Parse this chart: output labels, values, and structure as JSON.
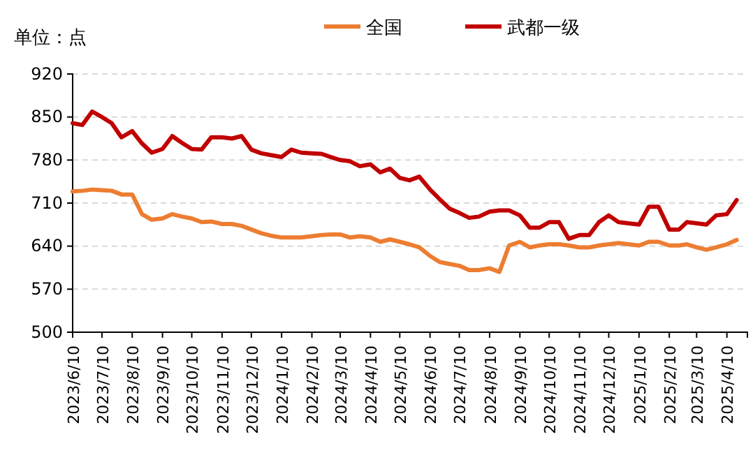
{
  "chart_data": {
    "type": "line",
    "ylabel": "单位：点",
    "legend": "top",
    "grid": "y",
    "marker": "none",
    "line_style": "solid",
    "x": [
      "2023-06-10",
      "2023-06-20",
      "2023-06-30",
      "2023-07-10",
      "2023-07-20",
      "2023-07-30",
      "2023-08-10",
      "2023-08-20",
      "2023-08-30",
      "2023-09-10",
      "2023-09-20",
      "2023-09-30",
      "2023-10-10",
      "2023-10-20",
      "2023-10-30",
      "2023-11-10",
      "2023-11-20",
      "2023-11-30",
      "2023-12-10",
      "2023-12-20",
      "2023-12-30",
      "2024-01-10",
      "2024-01-20",
      "2024-01-30",
      "2024-02-10",
      "2024-02-20",
      "2024-02-29",
      "2024-03-10",
      "2024-03-20",
      "2024-03-30",
      "2024-04-10",
      "2024-04-20",
      "2024-04-30",
      "2024-05-10",
      "2024-05-20",
      "2024-05-30",
      "2024-06-10",
      "2024-06-20",
      "2024-06-30",
      "2024-07-10",
      "2024-07-20",
      "2024-07-30",
      "2024-08-10",
      "2024-08-20",
      "2024-08-30",
      "2024-09-10",
      "2024-09-20",
      "2024-09-30",
      "2024-10-10",
      "2024-10-20",
      "2024-10-30",
      "2024-11-10",
      "2024-11-20",
      "2024-11-30",
      "2024-12-10",
      "2024-12-20",
      "2024-12-30",
      "2025-01-10",
      "2025-01-20",
      "2025-01-30",
      "2025-02-10",
      "2025-02-20",
      "2025-02-28",
      "2025-03-10",
      "2025-03-20",
      "2025-03-30",
      "2025-04-10",
      "2025-04-20"
    ],
    "series": [
      {
        "name": "全国",
        "color": "#ed7d31",
        "values": [
          729,
          730,
          732,
          731,
          730,
          724,
          724,
          692,
          683,
          685,
          692,
          688,
          685,
          679,
          680,
          676,
          676,
          673,
          667,
          661,
          657,
          654,
          654,
          654,
          656,
          658,
          659,
          659,
          654,
          656,
          654,
          647,
          651,
          647,
          643,
          638,
          624,
          614,
          611,
          608,
          601,
          601,
          604,
          598,
          641,
          647,
          638,
          641,
          643,
          643,
          641,
          638,
          638,
          641,
          643,
          645,
          643,
          641,
          647,
          647,
          641,
          641,
          643,
          638,
          634,
          638,
          643,
          650
        ]
      },
      {
        "name": "武都一级",
        "color": "#c00000",
        "values": [
          840,
          837,
          859,
          850,
          840,
          817,
          827,
          807,
          792,
          798,
          819,
          808,
          798,
          797,
          817,
          817,
          815,
          819,
          797,
          791,
          788,
          785,
          797,
          792,
          791,
          790,
          785,
          780,
          778,
          770,
          773,
          760,
          766,
          751,
          747,
          753,
          732,
          716,
          701,
          694,
          686,
          688,
          696,
          698,
          698,
          690,
          670,
          670,
          679,
          679,
          652,
          658,
          658,
          679,
          690,
          679,
          677,
          675,
          704,
          704,
          667,
          667,
          679,
          677,
          675,
          690,
          692,
          715
        ]
      }
    ],
    "xlim": [
      "2023-06-10",
      "2025-05-01"
    ],
    "xticks": [
      {
        "value": "2023-06-10",
        "label": "2023/6/10"
      },
      {
        "value": "2023-07-10",
        "label": "2023/7/10"
      },
      {
        "value": "2023-08-10",
        "label": "2023/8/10"
      },
      {
        "value": "2023-09-10",
        "label": "2023/9/10"
      },
      {
        "value": "2023-10-10",
        "label": "2023/10/10"
      },
      {
        "value": "2023-11-10",
        "label": "2023/11/10"
      },
      {
        "value": "2023-12-10",
        "label": "2023/12/10"
      },
      {
        "value": "2024-01-10",
        "label": "2024/1/10"
      },
      {
        "value": "2024-02-10",
        "label": "2024/2/10"
      },
      {
        "value": "2024-03-10",
        "label": "2024/3/10"
      },
      {
        "value": "2024-04-10",
        "label": "2024/4/10"
      },
      {
        "value": "2024-05-10",
        "label": "2024/5/10"
      },
      {
        "value": "2024-06-10",
        "label": "2024/6/10"
      },
      {
        "value": "2024-07-10",
        "label": "2024/7/10"
      },
      {
        "value": "2024-08-10",
        "label": "2024/8/10"
      },
      {
        "value": "2024-09-10",
        "label": "2024/9/10"
      },
      {
        "value": "2024-10-10",
        "label": "2024/10/10"
      },
      {
        "value": "2024-11-10",
        "label": "2024/11/10"
      },
      {
        "value": "2024-12-10",
        "label": "2024/12/10"
      },
      {
        "value": "2025-01-10",
        "label": "2025/1/10"
      },
      {
        "value": "2025-02-10",
        "label": "2025/2/10"
      },
      {
        "value": "2025-03-10",
        "label": "2025/3/10"
      },
      {
        "value": "2025-04-10",
        "label": "2025/4/10"
      }
    ],
    "ylim": [
      500,
      920
    ],
    "yticks": [
      500,
      570,
      640,
      710,
      780,
      850,
      920
    ]
  }
}
